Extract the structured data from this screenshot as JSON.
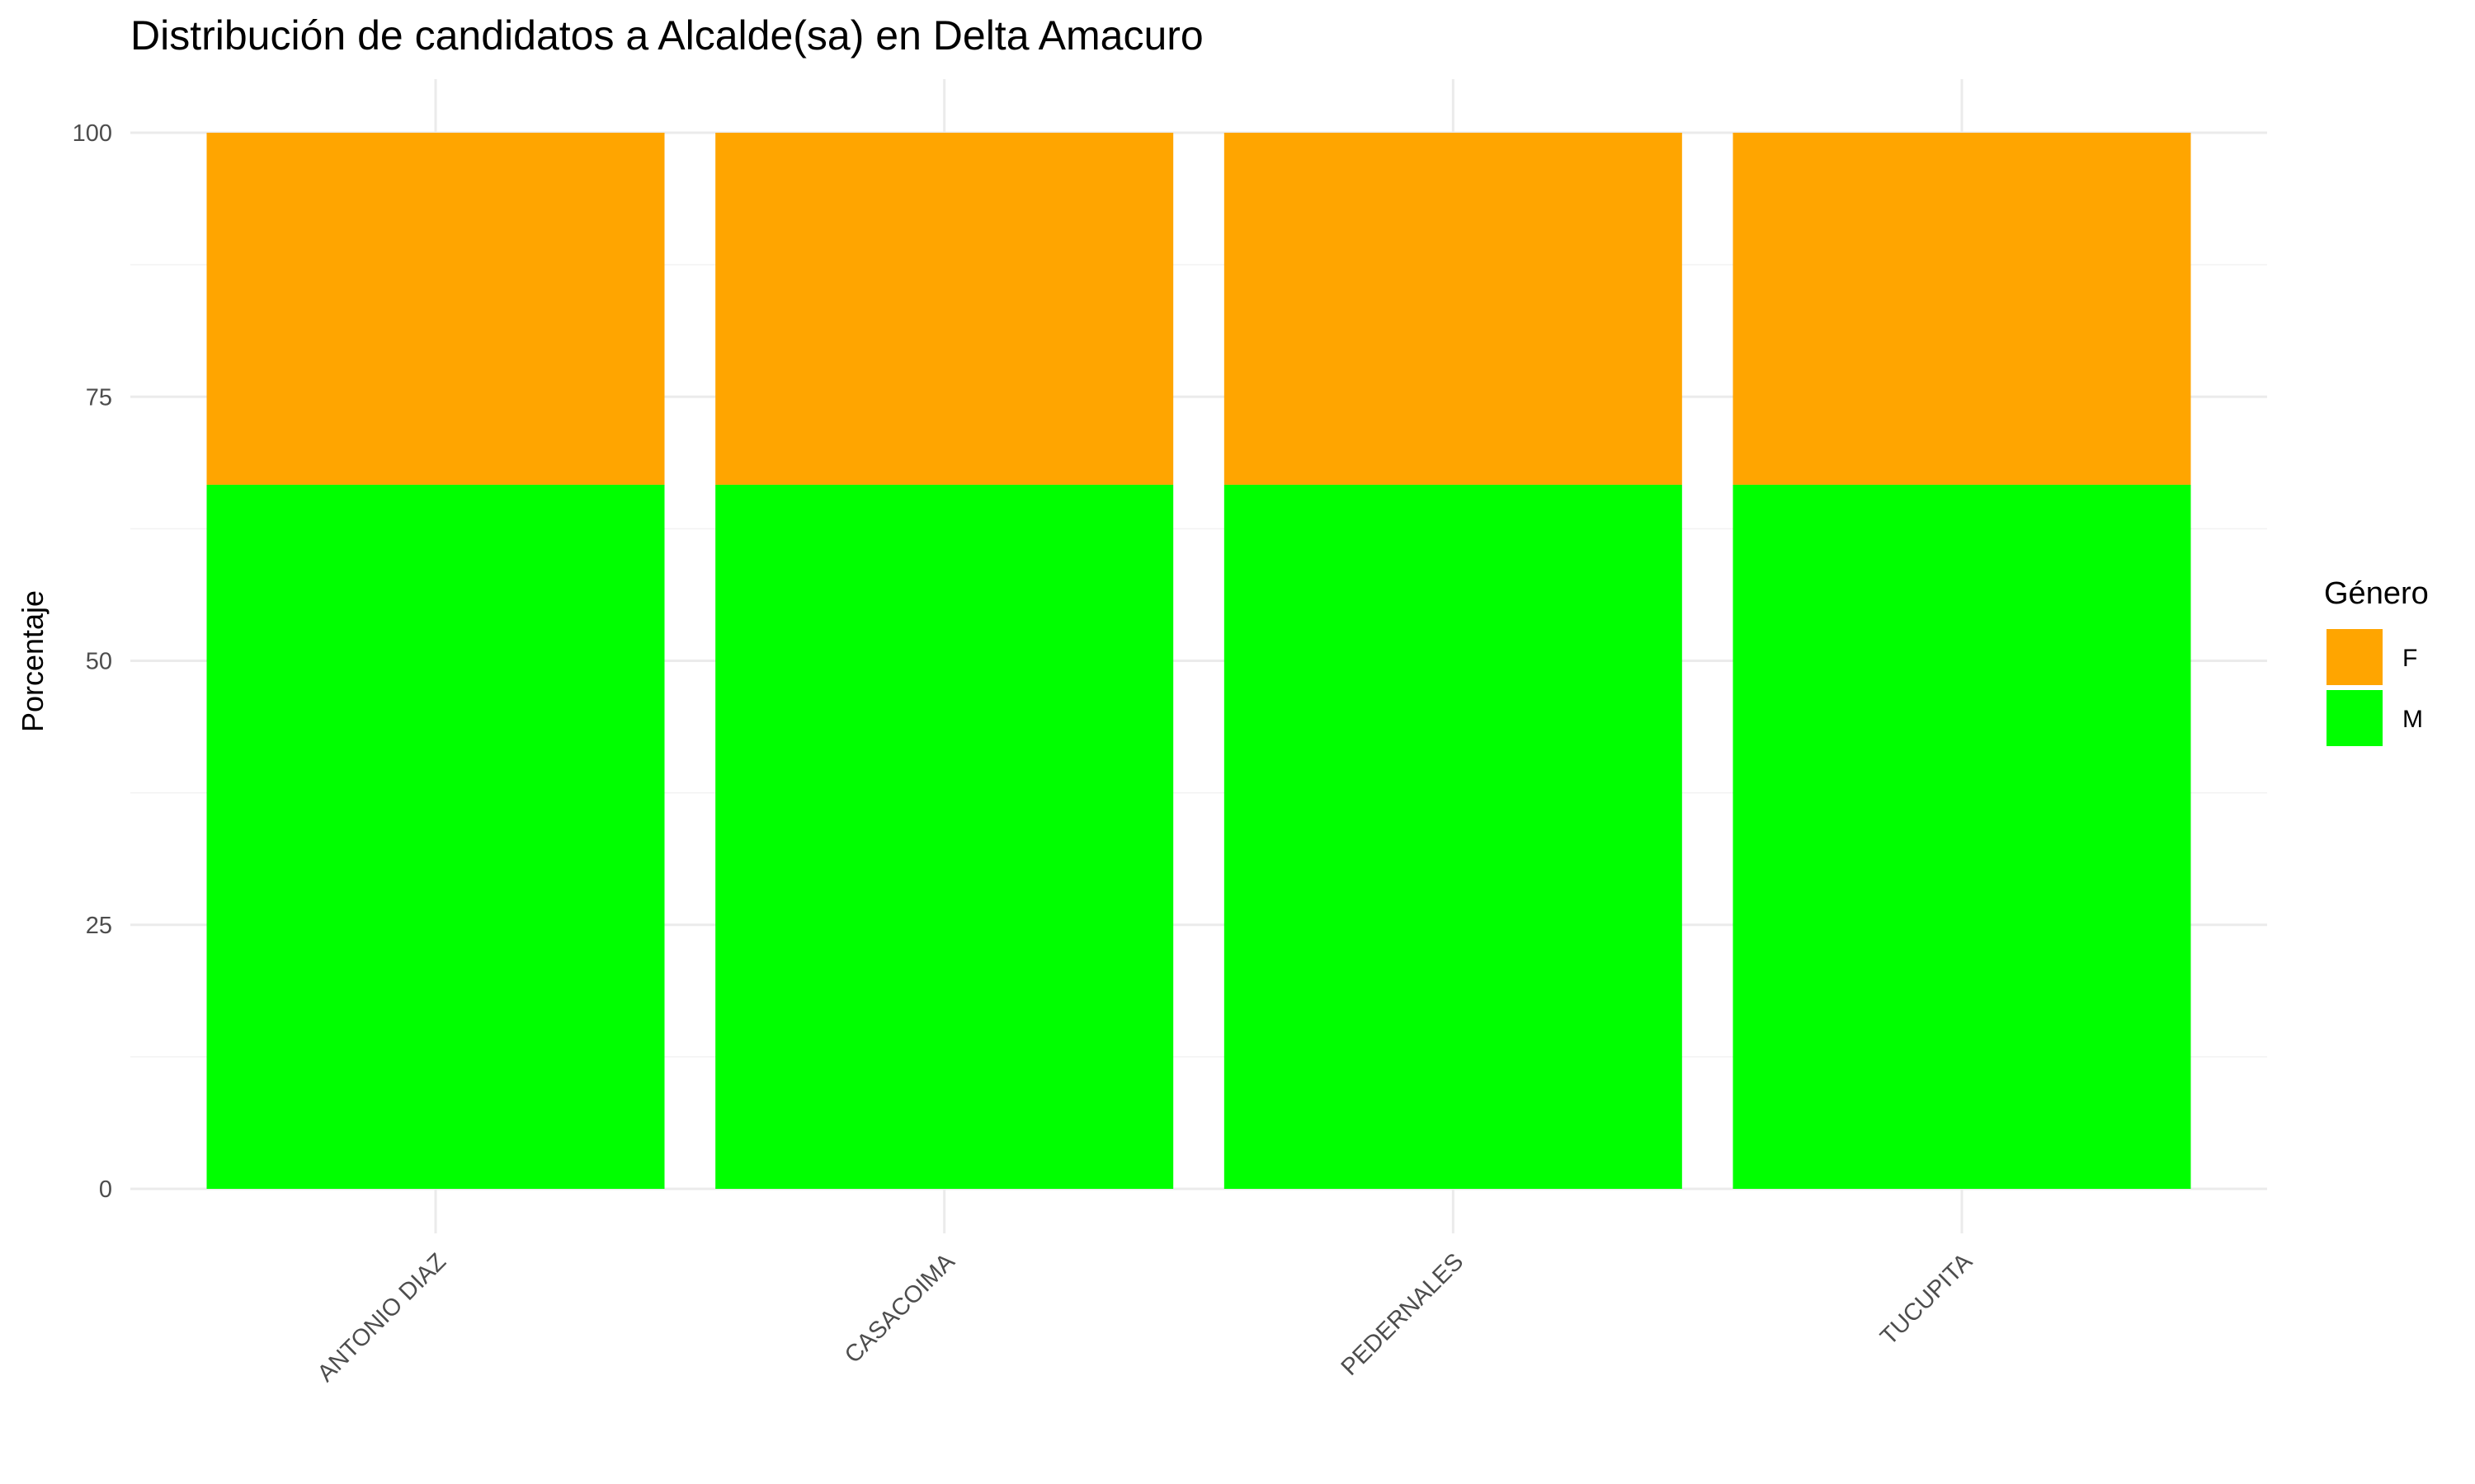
{
  "chart_data": {
    "type": "bar",
    "stacked": true,
    "title": "Distribución de candidatos a Alcalde(sa) en Delta Amacuro",
    "xlabel": "",
    "ylabel": "Porcentaje",
    "ylim": [
      0,
      100
    ],
    "yticks": [
      0,
      25,
      50,
      75,
      100
    ],
    "grid": true,
    "legend": {
      "title": "Género",
      "position": "right"
    },
    "categories": [
      "ANTONIO DIAZ",
      "CASACOIMA",
      "PEDERNALES",
      "TUCUPITA"
    ],
    "series": [
      {
        "name": "M",
        "color": "#00ff00",
        "values": [
          66.67,
          66.67,
          66.67,
          66.67
        ]
      },
      {
        "name": "F",
        "color": "#ffa500",
        "values": [
          33.33,
          33.33,
          33.33,
          33.33
        ]
      }
    ],
    "legend_order": [
      "F",
      "M"
    ]
  }
}
